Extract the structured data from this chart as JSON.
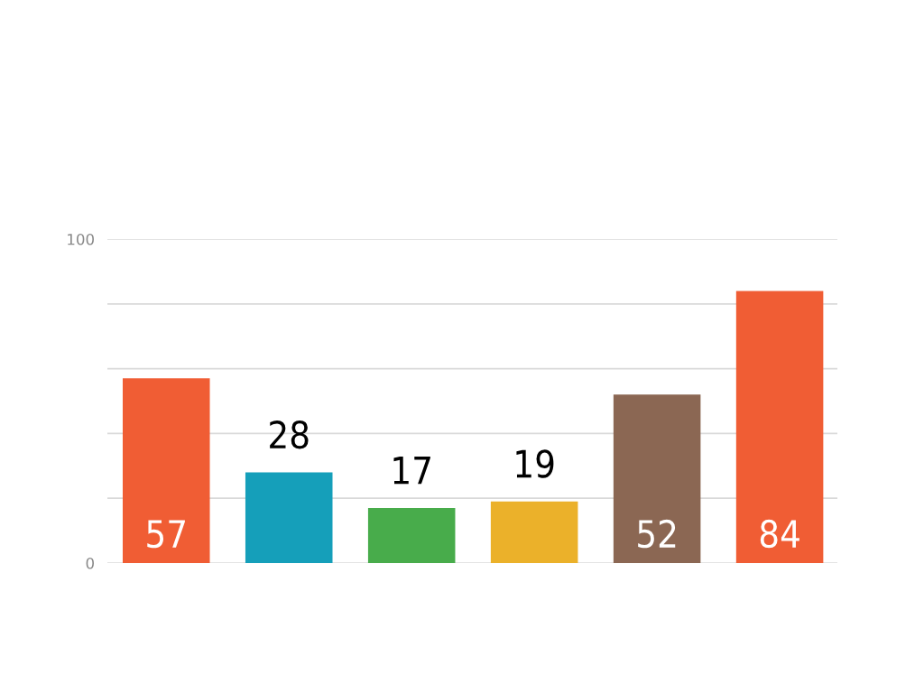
{
  "chart_data": {
    "type": "bar",
    "categories": [
      null,
      null,
      null,
      null,
      null,
      null
    ],
    "values": [
      57,
      28,
      17,
      19,
      52,
      84
    ],
    "colors": [
      "#f05d34",
      "#159fba",
      "#48ac4b",
      "#ebb12a",
      "#8b6753",
      "#f05d34"
    ],
    "ylim": [
      0,
      100
    ],
    "yticks": [
      0,
      {
        "value": 20,
        "label": null
      },
      {
        "value": 40,
        "label": null
      },
      {
        "value": 60,
        "label": null
      },
      {
        "value": 80,
        "label": null
      },
      100
    ],
    "grid": "y",
    "data_labels": true,
    "legend": false
  }
}
